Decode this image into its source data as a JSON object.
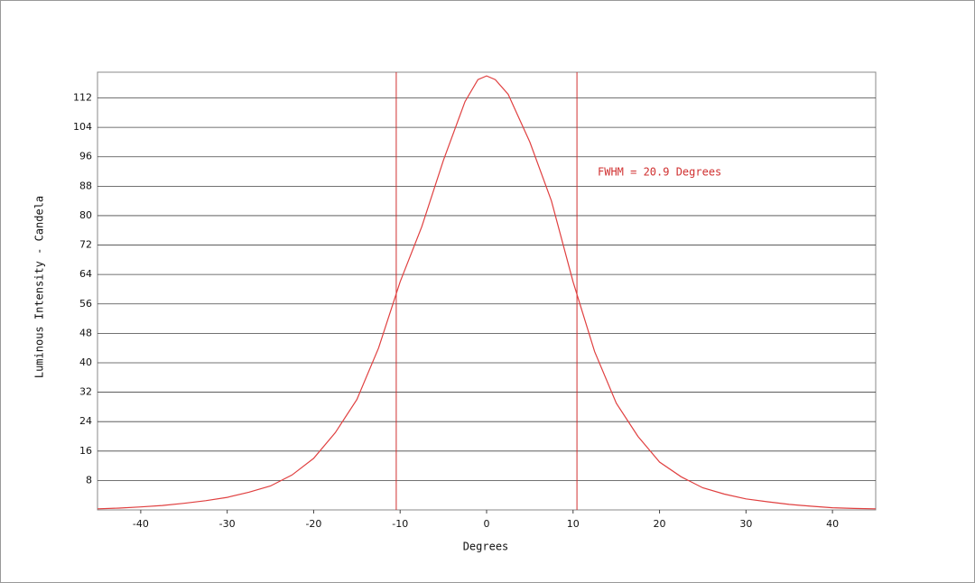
{
  "chart_data": {
    "type": "line",
    "xlabel": "Degrees",
    "ylabel": "Luminous Intensity - Candela",
    "annotation": "FWHM = 20.9 Degrees",
    "x": [
      -45,
      -42.5,
      -40,
      -37.5,
      -35,
      -32.5,
      -30,
      -27.5,
      -25,
      -22.5,
      -20,
      -17.5,
      -15,
      -12.5,
      -10,
      -7.5,
      -5,
      -2.5,
      -1,
      0,
      1,
      2.5,
      5,
      7.5,
      10,
      12.5,
      15,
      17.5,
      20,
      22.5,
      25,
      27.5,
      30,
      32.5,
      35,
      37.5,
      40,
      42.5,
      45
    ],
    "series": [
      {
        "color": "#e04040",
        "values": [
          0.3,
          0.5,
          0.8,
          1.2,
          1.8,
          2.5,
          3.4,
          4.8,
          6.5,
          9.5,
          14,
          21,
          30,
          44,
          62,
          77,
          95,
          111,
          117,
          118,
          117,
          113,
          100,
          84,
          62,
          43,
          29,
          20,
          13,
          9,
          6,
          4.3,
          3,
          2.2,
          1.5,
          1,
          0.6,
          0.4,
          0.3
        ]
      }
    ],
    "vlines": [
      -10.45,
      10.45
    ],
    "vline_color": "#d03030",
    "xlim": [
      -45,
      45
    ],
    "ylim": [
      0,
      119
    ],
    "xticks": [
      -40,
      -30,
      -20,
      -10,
      0,
      10,
      20,
      30,
      40
    ],
    "yticks": [
      8,
      16,
      24,
      32,
      40,
      48,
      56,
      64,
      72,
      80,
      88,
      96,
      104,
      112
    ],
    "grid": true
  }
}
